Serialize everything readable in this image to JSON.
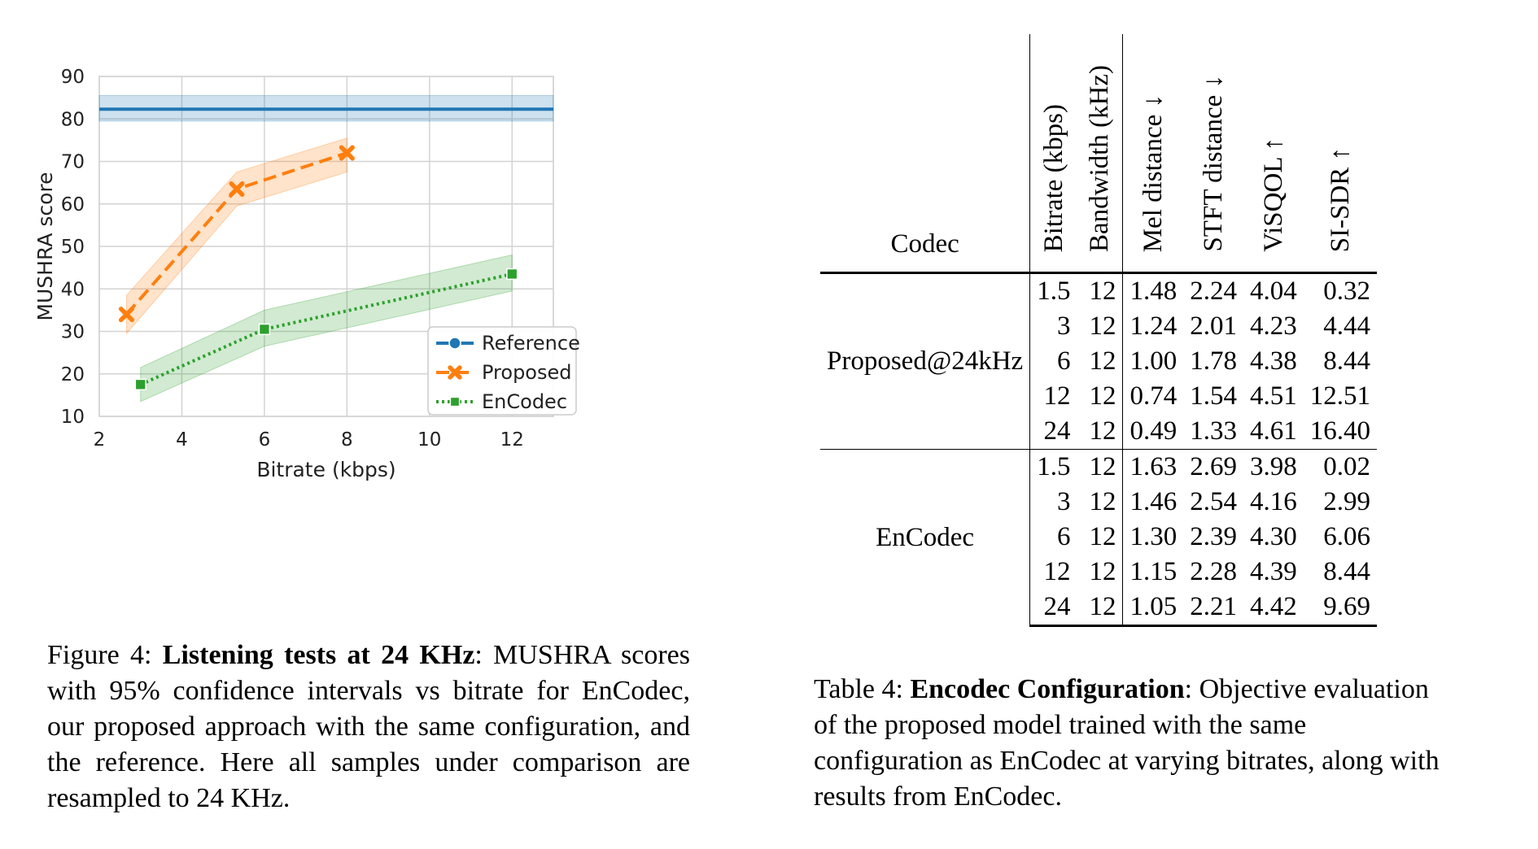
{
  "figure": {
    "caption_prefix": "Figure 4: ",
    "caption_title": "Listening tests at 24 KHz",
    "caption_body": ": MUSHRA scores with 95% confidence intervals vs bitrate for EnCodec, our proposed approach with the same configuration, and the reference. Here all samples under comparison are resampled to 24 KHz."
  },
  "chart_data": {
    "type": "line",
    "xlabel": "Bitrate (kbps)",
    "ylabel": "MUSHRA score",
    "xlim": [
      2,
      13
    ],
    "ylim": [
      10,
      90
    ],
    "xticks": [
      2,
      4,
      6,
      8,
      10,
      12
    ],
    "yticks": [
      10,
      20,
      30,
      40,
      50,
      60,
      70,
      80,
      90
    ],
    "grid": true,
    "legend_position": "lower-right",
    "series": [
      {
        "name": "Reference",
        "color": "#1f77b4",
        "line_style": "solid",
        "marker": "circle",
        "x": [
          2,
          13
        ],
        "y": [
          82.3,
          82.3
        ],
        "ci_low": [
          79.5,
          79.5
        ],
        "ci_high": [
          85.5,
          85.5
        ],
        "horizontal": true
      },
      {
        "name": "Proposed",
        "color": "#ff7f0e",
        "line_style": "dashed",
        "marker": "x",
        "x": [
          2.66,
          5.33,
          8
        ],
        "y": [
          34,
          63.5,
          72
        ],
        "ci_low": [
          29.5,
          59.5,
          67.5
        ],
        "ci_high": [
          38.5,
          67.5,
          75.5
        ]
      },
      {
        "name": "EnCodec",
        "color": "#2ca02c",
        "line_style": "dotted",
        "marker": "square",
        "x": [
          3,
          6,
          12
        ],
        "y": [
          17.5,
          30.5,
          43.5
        ],
        "ci_low": [
          13.5,
          26.5,
          39.5
        ],
        "ci_high": [
          21.5,
          35,
          48
        ]
      }
    ]
  },
  "table": {
    "caption_prefix": "Table 4: ",
    "caption_title": "Encodec Configuration",
    "caption_body": ": Objective evaluation of the proposed model trained with the same configuration as EnCodec at varying bitrates, along with results from EnCodec.",
    "headers": {
      "codec": "Codec",
      "bitrate": "Bitrate (kbps)",
      "bandwidth": "Bandwidth (kHz)",
      "mel": "Mel distance ↓",
      "stft": "STFT distance ↓",
      "visqol": "ViSQOL ↑",
      "sisdr": "SI-SDR ↑"
    },
    "groups": [
      {
        "codec": "Proposed@24kHz",
        "rows": [
          [
            "1.5",
            "12",
            "1.48",
            "2.24",
            "4.04",
            "0.32"
          ],
          [
            "3",
            "12",
            "1.24",
            "2.01",
            "4.23",
            "4.44"
          ],
          [
            "6",
            "12",
            "1.00",
            "1.78",
            "4.38",
            "8.44"
          ],
          [
            "12",
            "12",
            "0.74",
            "1.54",
            "4.51",
            "12.51"
          ],
          [
            "24",
            "12",
            "0.49",
            "1.33",
            "4.61",
            "16.40"
          ]
        ]
      },
      {
        "codec": "EnCodec",
        "rows": [
          [
            "1.5",
            "12",
            "1.63",
            "2.69",
            "3.98",
            "0.02"
          ],
          [
            "3",
            "12",
            "1.46",
            "2.54",
            "4.16",
            "2.99"
          ],
          [
            "6",
            "12",
            "1.30",
            "2.39",
            "4.30",
            "6.06"
          ],
          [
            "12",
            "12",
            "1.15",
            "2.28",
            "4.39",
            "8.44"
          ],
          [
            "24",
            "12",
            "1.05",
            "2.21",
            "4.42",
            "9.69"
          ]
        ]
      }
    ]
  }
}
